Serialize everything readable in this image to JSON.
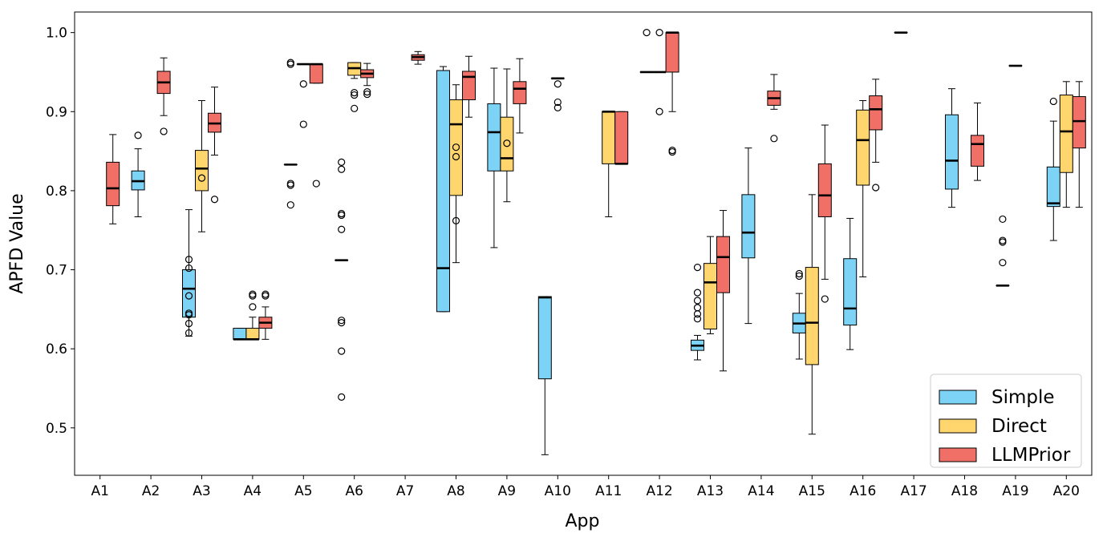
{
  "chart_data": {
    "type": "box",
    "title": "",
    "xlabel": "App",
    "ylabel": "APFD Value",
    "ylim": [
      0.44,
      1.026
    ],
    "yticks": [
      "0.5",
      "0.6",
      "0.7",
      "0.8",
      "0.9",
      "1.0"
    ],
    "categories": [
      "A1",
      "A2",
      "A3",
      "A4",
      "A5",
      "A6",
      "A7",
      "A8",
      "A9",
      "A10",
      "A11",
      "A12",
      "A13",
      "A14",
      "A15",
      "A16",
      "A17",
      "A18",
      "A19",
      "A20"
    ],
    "legend": {
      "position": "bottom-right"
    },
    "series": [
      {
        "name": "Simple",
        "color": "#7dd3f5",
        "boxes": [
          null,
          {
            "whislo": 0.767,
            "q1": 0.801,
            "med": 0.812,
            "q3": 0.825,
            "whishi": 0.853,
            "fliers": [
              0.87
            ]
          },
          {
            "whislo": 0.616,
            "q1": 0.64,
            "med": 0.676,
            "q3": 0.7,
            "whishi": 0.776,
            "fliers": [
              0.62,
              0.632,
              0.643,
              0.645,
              0.667,
              0.702,
              0.713
            ]
          },
          {
            "whislo": 0.612,
            "q1": 0.612,
            "med": 0.612,
            "q3": 0.626,
            "whishi": 0.626,
            "fliers": []
          },
          {
            "whislo": 0.833,
            "q1": 0.833,
            "med": 0.833,
            "q3": 0.833,
            "whishi": 0.833,
            "fliers": [
              0.782,
              0.807,
              0.809,
              0.96,
              0.962
            ]
          },
          {
            "whislo": 0.712,
            "q1": 0.712,
            "med": 0.712,
            "q3": 0.712,
            "whishi": 0.712,
            "fliers": [
              0.539,
              0.597,
              0.633,
              0.636,
              0.751,
              0.769,
              0.771,
              0.827,
              0.836
            ]
          },
          null,
          {
            "whislo": 0.647,
            "q1": 0.647,
            "med": 0.702,
            "q3": 0.952,
            "whishi": 0.957,
            "fliers": []
          },
          {
            "whislo": 0.728,
            "q1": 0.825,
            "med": 0.874,
            "q3": 0.91,
            "whishi": 0.955,
            "fliers": []
          },
          {
            "whislo": 0.466,
            "q1": 0.562,
            "med": 0.665,
            "q3": 0.666,
            "whishi": 0.666,
            "fliers": []
          },
          null,
          {
            "whislo": 0.95,
            "q1": 0.95,
            "med": 0.95,
            "q3": 0.95,
            "whishi": 0.95,
            "fliers": [
              1.0
            ]
          },
          {
            "whislo": 0.586,
            "q1": 0.598,
            "med": 0.604,
            "q3": 0.611,
            "whishi": 0.617,
            "fliers": [
              0.638,
              0.644,
              0.652,
              0.661,
              0.671,
              0.703
            ]
          },
          {
            "whislo": 0.632,
            "q1": 0.715,
            "med": 0.747,
            "q3": 0.795,
            "whishi": 0.854,
            "fliers": []
          },
          {
            "whislo": 0.587,
            "q1": 0.62,
            "med": 0.632,
            "q3": 0.645,
            "whishi": 0.67,
            "fliers": [
              0.692,
              0.695
            ]
          },
          {
            "whislo": 0.599,
            "q1": 0.63,
            "med": 0.651,
            "q3": 0.714,
            "whishi": 0.765,
            "fliers": []
          },
          {
            "whislo": 1.0,
            "q1": 1.0,
            "med": 1.0,
            "q3": 1.0,
            "whishi": 1.0,
            "fliers": []
          },
          {
            "whislo": 0.779,
            "q1": 0.802,
            "med": 0.838,
            "q3": 0.896,
            "whishi": 0.929,
            "fliers": []
          },
          {
            "whislo": 0.68,
            "q1": 0.68,
            "med": 0.68,
            "q3": 0.68,
            "whishi": 0.68,
            "fliers": [
              0.709,
              0.735,
              0.737,
              0.764
            ]
          },
          {
            "whislo": 0.737,
            "q1": 0.78,
            "med": 0.784,
            "q3": 0.83,
            "whishi": 0.888,
            "fliers": [
              0.913
            ]
          }
        ]
      },
      {
        "name": "Direct",
        "color": "#ffd56e",
        "boxes": [
          null,
          null,
          {
            "whislo": 0.748,
            "q1": 0.8,
            "med": 0.828,
            "q3": 0.851,
            "whishi": 0.914,
            "fliers": [
              0.816
            ]
          },
          {
            "whislo": 0.612,
            "q1": 0.612,
            "med": 0.612,
            "q3": 0.626,
            "whishi": 0.64,
            "fliers": [
              0.653,
              0.667,
              0.669
            ]
          },
          {
            "whislo": 0.96,
            "q1": 0.96,
            "med": 0.96,
            "q3": 0.96,
            "whishi": 0.96,
            "fliers": [
              0.884,
              0.935
            ]
          },
          {
            "whislo": 0.942,
            "q1": 0.946,
            "med": 0.955,
            "q3": 0.962,
            "whishi": 0.962,
            "fliers": [
              0.904,
              0.921,
              0.924
            ]
          },
          null,
          {
            "whislo": 0.709,
            "q1": 0.794,
            "med": 0.884,
            "q3": 0.915,
            "whishi": 0.934,
            "fliers": [
              0.762,
              0.843,
              0.855
            ]
          },
          {
            "whislo": 0.786,
            "q1": 0.825,
            "med": 0.841,
            "q3": 0.893,
            "whishi": 0.954,
            "fliers": [
              0.86
            ]
          },
          {
            "whislo": 0.942,
            "q1": 0.942,
            "med": 0.942,
            "q3": 0.942,
            "whishi": 0.942,
            "fliers": [
              0.905,
              0.912,
              0.935
            ]
          },
          {
            "whislo": 0.767,
            "q1": 0.834,
            "med": 0.9,
            "q3": 0.9,
            "whishi": 0.9,
            "fliers": []
          },
          {
            "whislo": 0.95,
            "q1": 0.95,
            "med": 0.95,
            "q3": 0.95,
            "whishi": 0.95,
            "fliers": [
              0.9,
              1.0
            ]
          },
          {
            "whislo": 0.619,
            "q1": 0.625,
            "med": 0.684,
            "q3": 0.708,
            "whishi": 0.742,
            "fliers": []
          },
          null,
          {
            "whislo": 0.492,
            "q1": 0.58,
            "med": 0.633,
            "q3": 0.703,
            "whishi": 0.795,
            "fliers": []
          },
          {
            "whislo": 0.691,
            "q1": 0.807,
            "med": 0.864,
            "q3": 0.902,
            "whishi": 0.914,
            "fliers": []
          },
          null,
          null,
          {
            "whislo": 0.958,
            "q1": 0.958,
            "med": 0.958,
            "q3": 0.958,
            "whishi": 0.958,
            "fliers": []
          },
          {
            "whislo": 0.779,
            "q1": 0.823,
            "med": 0.875,
            "q3": 0.921,
            "whishi": 0.938,
            "fliers": []
          }
        ]
      },
      {
        "name": "LLMPrior",
        "color": "#f07068",
        "boxes": [
          {
            "whislo": 0.758,
            "q1": 0.781,
            "med": 0.803,
            "q3": 0.836,
            "whishi": 0.871,
            "fliers": []
          },
          {
            "whislo": 0.895,
            "q1": 0.923,
            "med": 0.937,
            "q3": 0.951,
            "whishi": 0.968,
            "fliers": [
              0.875
            ]
          },
          {
            "whislo": 0.845,
            "q1": 0.874,
            "med": 0.885,
            "q3": 0.898,
            "whishi": 0.931,
            "fliers": [
              0.789
            ]
          },
          {
            "whislo": 0.612,
            "q1": 0.626,
            "med": 0.633,
            "q3": 0.64,
            "whishi": 0.653,
            "fliers": [
              0.667,
              0.669
            ]
          },
          {
            "whislo": 0.936,
            "q1": 0.936,
            "med": 0.96,
            "q3": 0.96,
            "whishi": 0.96,
            "fliers": [
              0.809
            ]
          },
          {
            "whislo": 0.933,
            "q1": 0.943,
            "med": 0.948,
            "q3": 0.953,
            "whishi": 0.961,
            "fliers": [
              0.922,
              0.925
            ]
          },
          {
            "whislo": 0.96,
            "q1": 0.965,
            "med": 0.969,
            "q3": 0.972,
            "whishi": 0.976,
            "fliers": []
          },
          {
            "whislo": 0.893,
            "q1": 0.915,
            "med": 0.944,
            "q3": 0.951,
            "whishi": 0.97,
            "fliers": []
          },
          {
            "whislo": 0.873,
            "q1": 0.91,
            "med": 0.929,
            "q3": 0.938,
            "whishi": 0.967,
            "fliers": []
          },
          null,
          {
            "whislo": 0.834,
            "q1": 0.834,
            "med": 0.834,
            "q3": 0.9,
            "whishi": 0.9,
            "fliers": []
          },
          {
            "whislo": 0.9,
            "q1": 0.95,
            "med": 1.0,
            "q3": 1.0,
            "whishi": 1.0,
            "fliers": [
              0.849,
              0.851
            ]
          },
          {
            "whislo": 0.572,
            "q1": 0.671,
            "med": 0.716,
            "q3": 0.742,
            "whishi": 0.775,
            "fliers": []
          },
          {
            "whislo": 0.903,
            "q1": 0.908,
            "med": 0.917,
            "q3": 0.926,
            "whishi": 0.947,
            "fliers": [
              0.866
            ]
          },
          {
            "whislo": 0.688,
            "q1": 0.767,
            "med": 0.794,
            "q3": 0.834,
            "whishi": 0.883,
            "fliers": [
              0.663
            ]
          },
          {
            "whislo": 0.836,
            "q1": 0.877,
            "med": 0.903,
            "q3": 0.92,
            "whishi": 0.941,
            "fliers": [
              0.804
            ]
          },
          null,
          {
            "whislo": 0.813,
            "q1": 0.831,
            "med": 0.859,
            "q3": 0.87,
            "whishi": 0.911,
            "fliers": []
          },
          null,
          {
            "whislo": 0.779,
            "q1": 0.854,
            "med": 0.888,
            "q3": 0.919,
            "whishi": 0.938,
            "fliers": []
          }
        ]
      }
    ]
  }
}
